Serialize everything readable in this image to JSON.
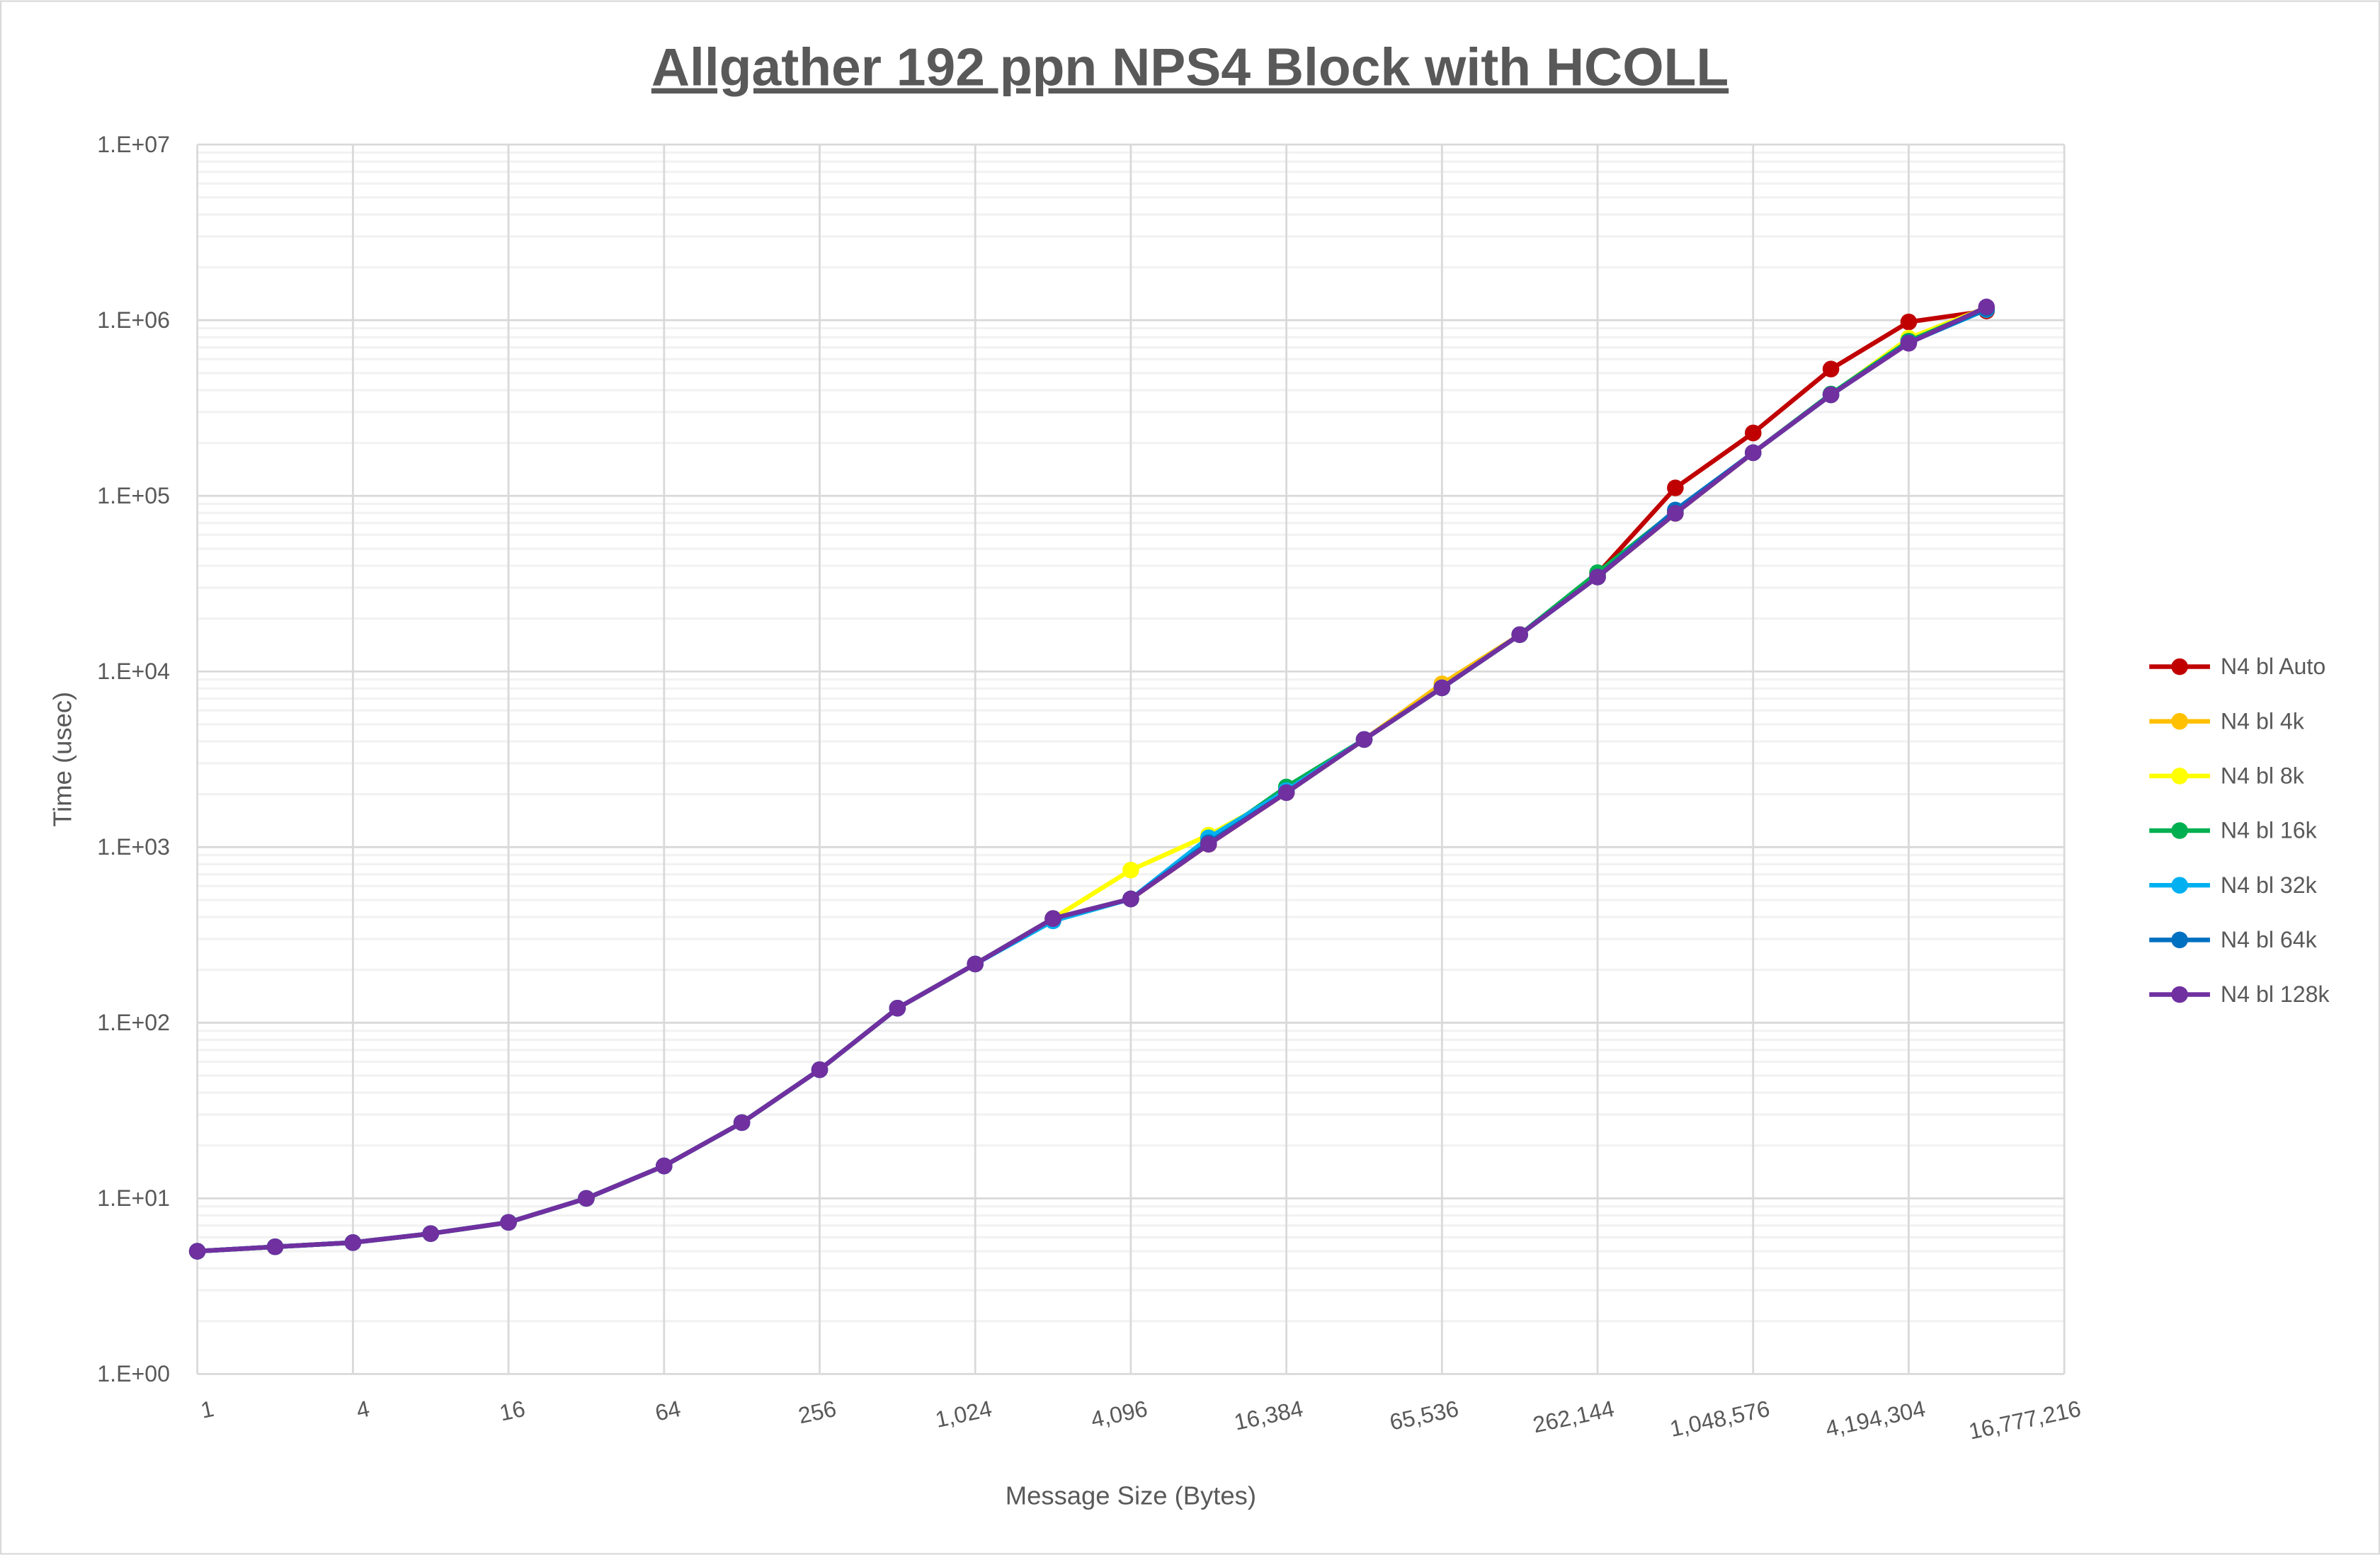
{
  "chart_data": {
    "type": "line",
    "title": "Allgather 192 ppn NPS4 Block with HCOLL",
    "xlabel": "Message Size (Bytes)",
    "ylabel": "Time (usec)",
    "x_scale": "log2",
    "y_scale": "log10",
    "xlim": [
      1,
      16777216
    ],
    "ylim": [
      1,
      10000000
    ],
    "x_tick_labels": [
      "1",
      "4",
      "16",
      "64",
      "256",
      "1,024",
      "4,096",
      "16,384",
      "65,536",
      "262,144",
      "1,048,576",
      "4,194,304",
      "16,777,216"
    ],
    "y_tick_labels": [
      "1.E+00",
      "1.E+01",
      "1.E+02",
      "1.E+03",
      "1.E+04",
      "1.E+05",
      "1.E+06",
      "1.E+07"
    ],
    "grid": true,
    "legend_position": "right",
    "x": [
      1,
      2,
      4,
      8,
      16,
      32,
      64,
      128,
      256,
      512,
      1024,
      2048,
      4096,
      8192,
      16384,
      32768,
      65536,
      131072,
      262144,
      524288,
      1048576,
      2097152,
      4194304,
      8388608
    ],
    "series": [
      {
        "name": "N4 bl Auto",
        "color": "#C00000",
        "values": [
          5.0,
          5.3,
          5.6,
          6.3,
          7.3,
          10,
          15.3,
          27,
          54,
          121,
          216,
          392,
          507,
          1038,
          2042,
          4100,
          8070,
          16200,
          36000,
          111000,
          228000,
          527000,
          977000,
          1130000
        ]
      },
      {
        "name": "N4 bl 4k",
        "color": "#FFC000",
        "values": [
          5.0,
          5.3,
          5.6,
          6.3,
          7.3,
          10,
          15.3,
          27,
          54,
          121,
          216,
          392,
          507,
          1038,
          2042,
          4100,
          8500,
          16200,
          34500,
          79500,
          176000,
          376000,
          780000,
          1150000
        ]
      },
      {
        "name": "N4 bl 8k",
        "color": "#FFFF00",
        "values": [
          5.0,
          5.3,
          5.6,
          6.3,
          7.3,
          10,
          15.3,
          27,
          54,
          121,
          216,
          392,
          740,
          1170,
          2042,
          4100,
          8070,
          16200,
          34500,
          79500,
          176000,
          376000,
          790000,
          1180000
        ]
      },
      {
        "name": "N4 bl 16k",
        "color": "#00B050",
        "values": [
          5.0,
          5.3,
          5.6,
          6.3,
          7.3,
          10,
          15.3,
          27,
          54,
          121,
          216,
          392,
          507,
          1080,
          2200,
          4100,
          8070,
          16200,
          36500,
          82000,
          176000,
          380000,
          760000,
          1170000
        ]
      },
      {
        "name": "N4 bl 32k",
        "color": "#00B0F0",
        "values": [
          5.0,
          5.3,
          5.6,
          6.3,
          7.3,
          10,
          15.3,
          27,
          54,
          121,
          216,
          380,
          507,
          1130,
          2100,
          4100,
          8070,
          16200,
          34500,
          80000,
          176000,
          376000,
          745000,
          1150000
        ]
      },
      {
        "name": "N4 bl 64k",
        "color": "#0070C0",
        "values": [
          5.0,
          5.3,
          5.6,
          6.3,
          7.3,
          10,
          15.3,
          27,
          54,
          121,
          216,
          392,
          507,
          1060,
          2042,
          4100,
          8070,
          16200,
          34500,
          83000,
          176000,
          376000,
          745000,
          1160000
        ]
      },
      {
        "name": "N4 bl 128k",
        "color": "#7030A0",
        "values": [
          5.0,
          5.3,
          5.6,
          6.3,
          7.3,
          10,
          15.3,
          27,
          54,
          121,
          216,
          392,
          507,
          1038,
          2042,
          4100,
          8070,
          16200,
          34500,
          79500,
          176000,
          376000,
          739000,
          1190000
        ]
      }
    ]
  }
}
